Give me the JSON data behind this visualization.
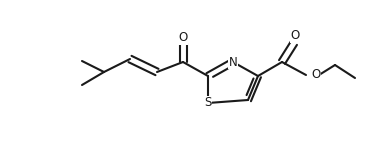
{
  "bg_color": "#ffffff",
  "line_color": "#1a1a1a",
  "line_width": 1.5,
  "font_size": 8.5,
  "figsize": [
    3.71,
    1.42
  ],
  "dpi": 100,
  "xlim": [
    0,
    371
  ],
  "ylim": [
    0,
    142
  ]
}
